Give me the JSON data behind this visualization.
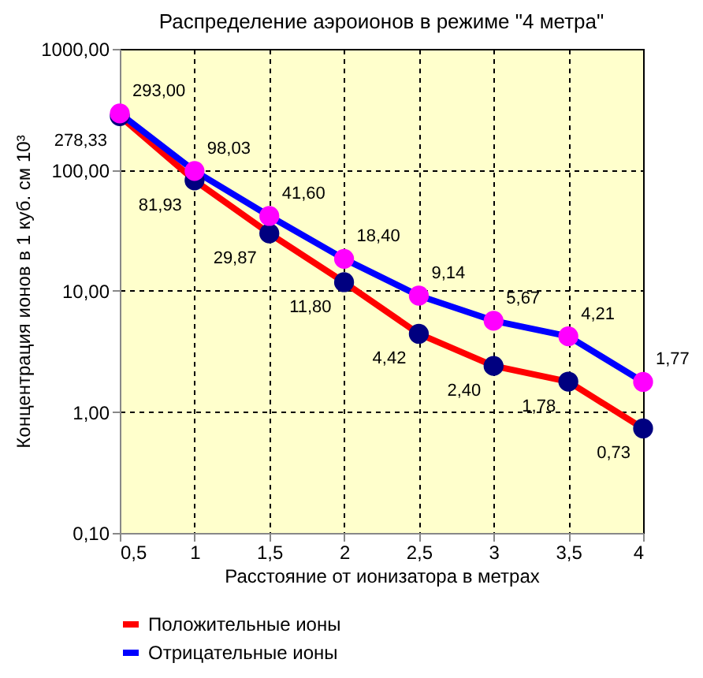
{
  "chart_data": {
    "type": "line",
    "title": "Распределение аэроионов в режиме \"4 метра\"",
    "xlabel": "Расстояние от ионизатора в метрах",
    "ylabel": "Концентрация ионов в 1 куб. см 10³",
    "x": [
      0.5,
      1,
      1.5,
      2,
      2.5,
      3,
      3.5,
      4
    ],
    "series": [
      {
        "name": "Положительные ионы",
        "color": "#ff0000",
        "colors": [
          "#000080",
          "#000080",
          "#000080",
          "#000080",
          "#000080",
          "#000080",
          "#000080",
          "#000080"
        ],
        "values": [
          278.33,
          81.93,
          29.87,
          11.8,
          4.42,
          2.4,
          1.78,
          0.73
        ],
        "value_labels": [
          "278,33",
          "81,93",
          "29,87",
          "11,80",
          "4,42",
          "2,40",
          "1,78",
          "0,73"
        ]
      },
      {
        "name": "Отрицательные ионы",
        "color": "#0000ff",
        "colors": [
          "#ff00ff",
          "#ff00ff",
          "#ff00ff",
          "#ff00ff",
          "#ff00ff",
          "#ff00ff",
          "#ff00ff",
          "#ff00ff"
        ],
        "values": [
          293.0,
          98.03,
          41.6,
          18.4,
          9.14,
          5.67,
          4.21,
          1.77
        ],
        "value_labels": [
          "293,00",
          "98,03",
          "41,60",
          "18,40",
          "9,14",
          "5,67",
          "4,21",
          "1,77"
        ]
      }
    ],
    "log": true,
    "xlim": [
      0.5,
      4
    ],
    "xticks": [
      {
        "value": 0.5,
        "label": "0,5"
      },
      1,
      {
        "value": 1.5,
        "label": "1,5"
      },
      2,
      {
        "value": 2.5,
        "label": "2,5"
      },
      3,
      {
        "value": 3.5,
        "label": "3,5"
      },
      4
    ],
    "ylim": [
      0.1,
      1000
    ],
    "yticks": [
      {
        "value": 0.1,
        "label": "0,10"
      },
      {
        "value": 1,
        "label": "1,00"
      },
      {
        "value": 10,
        "label": "10,00"
      },
      {
        "value": 100,
        "label": "100,00"
      },
      {
        "value": 1000,
        "label": "1000,00"
      }
    ],
    "grid": true,
    "legend": "bottom",
    "marker": "circle",
    "line_style": "solid"
  }
}
